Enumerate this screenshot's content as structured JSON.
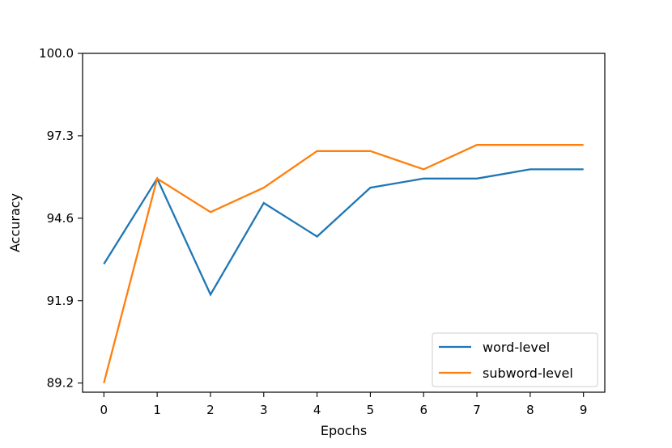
{
  "chart_data": {
    "type": "line",
    "title": "",
    "xlabel": "Epochs",
    "ylabel": "Accuracy",
    "x": [
      0,
      1,
      2,
      3,
      4,
      5,
      6,
      7,
      8,
      9
    ],
    "x_ticks": [
      "0",
      "1",
      "2",
      "3",
      "4",
      "5",
      "6",
      "7",
      "8",
      "9"
    ],
    "xlim": [
      -0.4,
      9.4
    ],
    "y_ticks": [
      "89.2",
      "91.9",
      "94.6",
      "97.3",
      "100.0"
    ],
    "y_tick_values": [
      89.2,
      91.9,
      94.6,
      97.3,
      100.0
    ],
    "ylim": [
      88.9,
      100.0
    ],
    "grid": false,
    "legend_position": "lower-right",
    "series": [
      {
        "name": "word-level",
        "color": "#1f77b4",
        "values": [
          93.1,
          95.9,
          92.1,
          95.1,
          94.0,
          95.6,
          95.9,
          95.9,
          96.2,
          96.2
        ]
      },
      {
        "name": "subword-level",
        "color": "#ff7f0e",
        "values": [
          89.2,
          95.9,
          94.8,
          95.6,
          96.8,
          96.8,
          96.2,
          97.0,
          97.0,
          97.0
        ]
      }
    ]
  }
}
